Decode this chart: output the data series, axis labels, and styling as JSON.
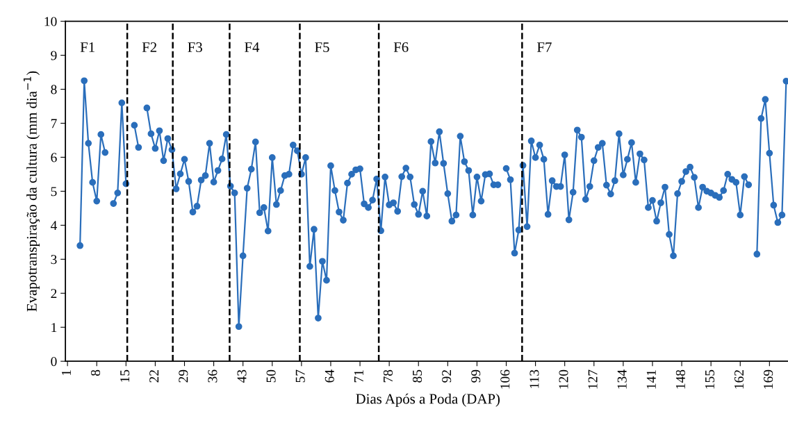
{
  "chart_data": {
    "type": "line",
    "xlabel": "Dias Após a Poda (DAP)",
    "ylabel": "Evapotranspiração da cultura (mm dia$^{−1}$)",
    "x": [
      4,
      5,
      6,
      7,
      8,
      9,
      10,
      11,
      12,
      13,
      14,
      15,
      16,
      17,
      18,
      19,
      20,
      21,
      22,
      23,
      24,
      25,
      26,
      27,
      28,
      29,
      30,
      31,
      32,
      33,
      34,
      35,
      36,
      37,
      38,
      39,
      40,
      41,
      42,
      43,
      44,
      45,
      46,
      47,
      48,
      49,
      50,
      51,
      52,
      53,
      54,
      55,
      56,
      57,
      58,
      59,
      60,
      61,
      62,
      63,
      64,
      65,
      66,
      67,
      68,
      69,
      70,
      71,
      72,
      73,
      74,
      75,
      76,
      77,
      78,
      79,
      80,
      81,
      82,
      83,
      84,
      85,
      86,
      87,
      88,
      89,
      90,
      91,
      92,
      93,
      94,
      95,
      96,
      97,
      98,
      99,
      100,
      101,
      102,
      103,
      104,
      105,
      106,
      107,
      108,
      109,
      110,
      111,
      112,
      113,
      114,
      115,
      116,
      117,
      118,
      119,
      120,
      121,
      122,
      123,
      124,
      125,
      126,
      127,
      128,
      129,
      130,
      131,
      132,
      133,
      134,
      135,
      136,
      137,
      138,
      139,
      140,
      141,
      142,
      143,
      144,
      145,
      146,
      147,
      148,
      149,
      150,
      151,
      152,
      153,
      154,
      155,
      156,
      157,
      158,
      159,
      160,
      161,
      162,
      163,
      164,
      165,
      166,
      167,
      168,
      169,
      170,
      171,
      172,
      173
    ],
    "series": [
      {
        "color": "#2a6ebb",
        "values": [
          3.4,
          8.25,
          6.41,
          5.26,
          4.71,
          6.67,
          6.14,
          null,
          4.64,
          4.95,
          7.6,
          5.22,
          null,
          6.94,
          6.29,
          null,
          7.45,
          6.69,
          6.26,
          6.78,
          5.9,
          6.55,
          6.22,
          5.07,
          5.51,
          5.94,
          5.29,
          4.39,
          4.56,
          5.33,
          5.46,
          6.41,
          5.27,
          5.61,
          5.95,
          6.67,
          5.15,
          4.95,
          1.02,
          3.1,
          5.09,
          5.65,
          6.45,
          4.37,
          4.52,
          3.83,
          5.99,
          4.61,
          5.02,
          5.46,
          5.5,
          6.36,
          6.19,
          5.5,
          5.99,
          2.79,
          3.88,
          1.27,
          2.94,
          2.38,
          5.75,
          5.02,
          4.39,
          4.15,
          5.24,
          5.5,
          5.63,
          5.66,
          4.63,
          4.52,
          4.74,
          5.36,
          3.84,
          5.42,
          4.6,
          4.66,
          4.41,
          5.43,
          5.68,
          5.42,
          4.61,
          4.32,
          5.0,
          4.27,
          6.46,
          5.83,
          6.75,
          5.82,
          4.93,
          4.12,
          4.3,
          6.62,
          5.87,
          5.61,
          4.3,
          5.42,
          4.71,
          5.49,
          5.51,
          5.19,
          5.19,
          null,
          5.67,
          5.34,
          3.18,
          3.86,
          5.76,
          3.96,
          6.48,
          5.99,
          6.36,
          5.94,
          4.32,
          5.31,
          5.14,
          5.14,
          6.07,
          4.16,
          4.97,
          6.8,
          6.59,
          4.76,
          5.14,
          5.9,
          6.29,
          6.41,
          5.18,
          4.92,
          5.31,
          6.69,
          5.48,
          5.94,
          6.43,
          5.26,
          6.1,
          5.92,
          4.52,
          4.73,
          4.12,
          4.66,
          5.12,
          3.73,
          3.1,
          4.93,
          5.29,
          5.58,
          5.71,
          5.41,
          4.52,
          5.12,
          5.0,
          4.95,
          4.88,
          4.82,
          5.02,
          5.5,
          5.35,
          5.26,
          4.3,
          5.43,
          5.19,
          null,
          3.15,
          7.14,
          7.7,
          6.12,
          4.59,
          4.08,
          4.3,
          8.24
        ]
      }
    ],
    "xlim": [
      0.5,
      174
    ],
    "xticks": [
      1,
      8,
      15,
      22,
      29,
      36,
      43,
      50,
      57,
      64,
      71,
      78,
      85,
      92,
      99,
      106,
      113,
      120,
      127,
      134,
      141,
      148,
      155,
      162,
      169
    ],
    "ylim": [
      0,
      10
    ],
    "yticks": [
      0,
      1,
      2,
      3,
      4,
      5,
      6,
      7,
      8,
      9,
      10
    ],
    "ref_lines": [
      {
        "axis": "x",
        "value": 15.3,
        "color": "#000000",
        "line_style": "dashed"
      },
      {
        "axis": "x",
        "value": 26.2,
        "color": "#000000",
        "line_style": "dashed"
      },
      {
        "axis": "x",
        "value": 39.8,
        "color": "#000000",
        "line_style": "dashed"
      },
      {
        "axis": "x",
        "value": 56.6,
        "color": "#000000",
        "line_style": "dashed"
      },
      {
        "axis": "x",
        "value": 75.5,
        "color": "#000000",
        "line_style": "dashed"
      },
      {
        "axis": "x",
        "value": 109.8,
        "color": "#000000",
        "line_style": "dashed"
      }
    ],
    "annotations": [
      "F1",
      "F2",
      "F3",
      "F4",
      "F5",
      "F6",
      "F7"
    ],
    "grid": false,
    "marker": "circle",
    "line_style": "solid"
  }
}
